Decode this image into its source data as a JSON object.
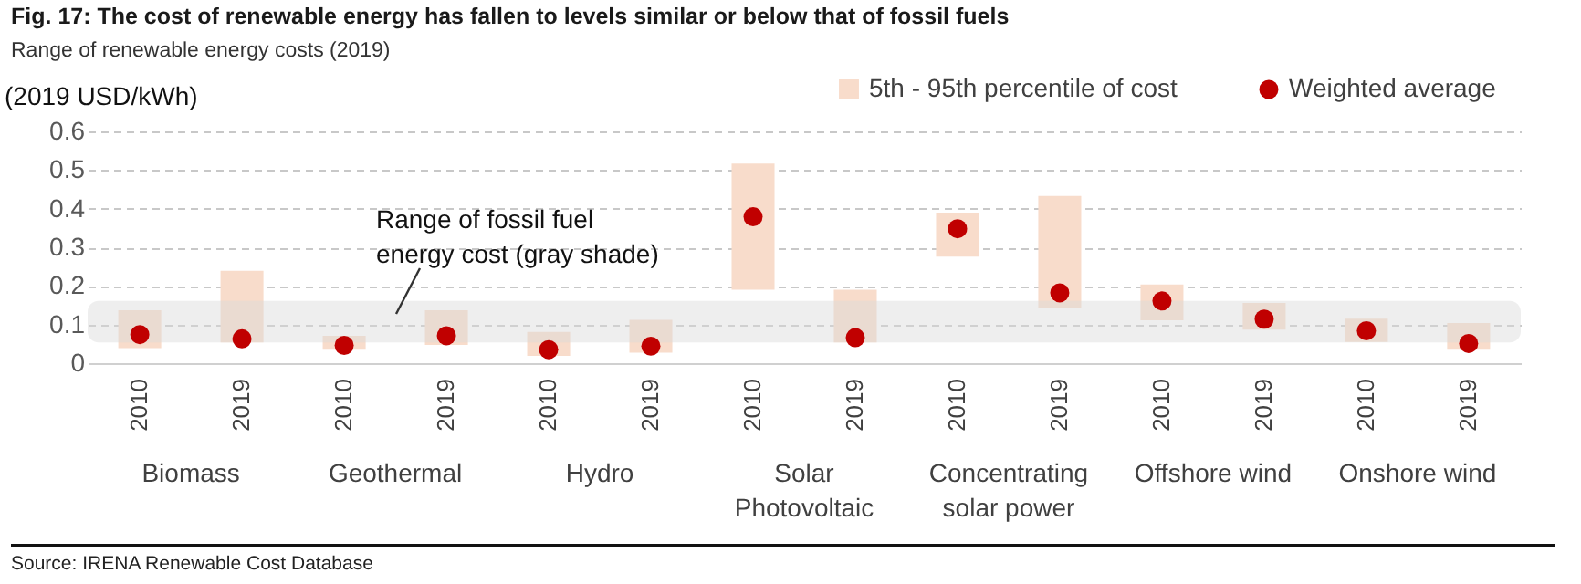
{
  "chart_data": {
    "type": "bar",
    "title": "Fig. 17: The cost of renewable energy has fallen to levels similar or below that of fossil fuels",
    "subtitle": "Range of renewable energy costs (2019)",
    "ylabel": "(2019 USD/kWh)",
    "categories": [
      "2010",
      "2019",
      "2010",
      "2019",
      "2010",
      "2019",
      "2010",
      "2019",
      "2010",
      "2019",
      "2010",
      "2019",
      "2010",
      "2019"
    ],
    "series": [
      {
        "type": "bar",
        "name": "5th - 95th percentile of cost",
        "color": "#f8dccb",
        "base": [
          0.039,
          0.054,
          0.035,
          0.047,
          0.019,
          0.027,
          0.19,
          0.054,
          0.276,
          0.144,
          0.111,
          0.087,
          0.055,
          0.035
        ],
        "values": [
          0.098,
          0.185,
          0.036,
          0.09,
          0.062,
          0.085,
          0.327,
          0.136,
          0.114,
          0.289,
          0.093,
          0.069,
          0.06,
          0.069
        ]
      },
      {
        "type": "scatter",
        "name": "Weighted average",
        "color": "#c00000",
        "values": [
          0.074,
          0.063,
          0.046,
          0.071,
          0.035,
          0.044,
          0.379,
          0.066,
          0.348,
          0.182,
          0.161,
          0.114,
          0.084,
          0.051
        ]
      }
    ],
    "ylim": [
      0,
      0.6
    ],
    "yticks": [
      0,
      0.1,
      0.2,
      0.3,
      0.4,
      0.5,
      0.6
    ],
    "grid": "y",
    "legend": "top right",
    "marker": "circle",
    "bands": [
      {
        "axis": "y",
        "from": 0.054,
        "to": 0.161,
        "color": "#d9d9d9",
        "label": "Range of fossil fuel energy cost (gray shade)"
      }
    ],
    "annotations": [
      "Biomass",
      "Geothermal",
      "Hydro",
      "Solar Photovoltaic",
      "Concentrating solar power",
      "Offshore wind",
      "Onshore wind",
      "Source: IRENA Renewable Cost Database"
    ]
  }
}
